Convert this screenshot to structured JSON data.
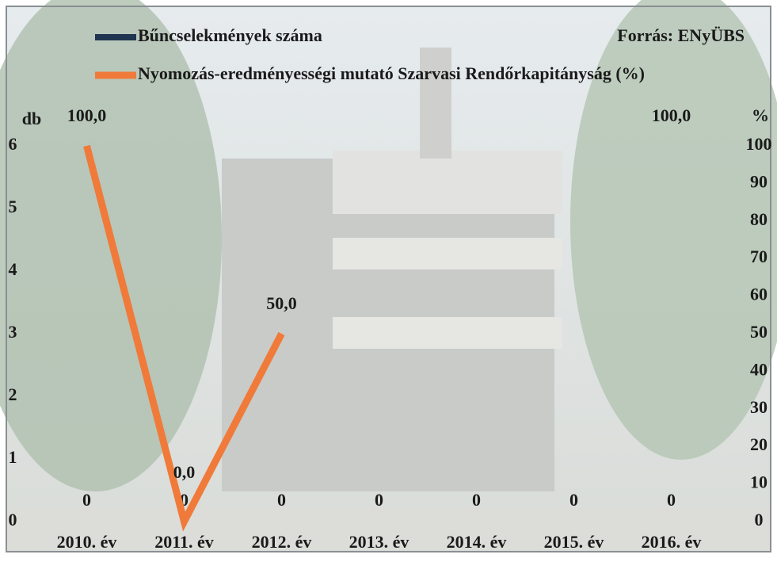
{
  "chart_data": {
    "type": "bar-line",
    "source": "Forrás: ENyÜBS",
    "y_label": "db",
    "y2_label": "%",
    "categories": [
      "2010. év",
      "2011. év",
      "2012. év",
      "2013. év",
      "2014. év",
      "2015. év",
      "2016. év"
    ],
    "series": [
      {
        "name": "Bűncselekmények száma",
        "type": "bar",
        "color": "#1f3550",
        "values": [
          0,
          0,
          0,
          0,
          0,
          0,
          0
        ]
      },
      {
        "name": "Nyomozás-eredményességi mutató Szarvasi Rendőrkapitányság (%)",
        "type": "line",
        "axis": "y2",
        "color": "#f07a3a",
        "values": [
          100,
          0,
          50,
          null,
          null,
          null,
          100
        ],
        "value_labels": [
          "100,0",
          "0,0",
          "50,0",
          null,
          null,
          null,
          "100,0"
        ]
      }
    ],
    "ylim": [
      0,
      6
    ],
    "yticks": [
      0,
      1,
      2,
      3,
      4,
      5,
      6
    ],
    "y2lim": [
      0,
      100
    ],
    "y2ticks": [
      0,
      10,
      20,
      30,
      40,
      50,
      60,
      70,
      80,
      90,
      100
    ],
    "grid": false
  }
}
